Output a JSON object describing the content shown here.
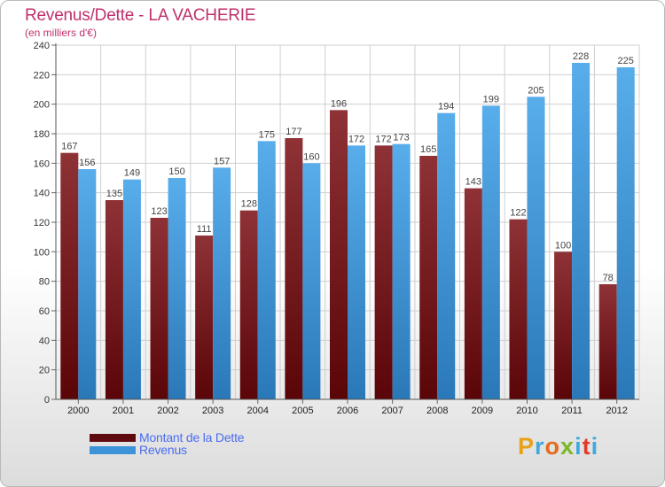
{
  "header": {
    "title": "Revenus/Dette - LA VACHERIE",
    "subtitle": "(en milliers d'€)"
  },
  "chart_data": {
    "type": "bar",
    "categories": [
      "2000",
      "2001",
      "2002",
      "2003",
      "2004",
      "2005",
      "2006",
      "2007",
      "2008",
      "2009",
      "2010",
      "2011",
      "2012"
    ],
    "series": [
      {
        "name": "Montant de la Dette",
        "values": [
          167,
          135,
          123,
          111,
          128,
          177,
          196,
          172,
          165,
          143,
          122,
          100,
          78
        ],
        "color": "#8b2a2f"
      },
      {
        "name": "Revenus",
        "values": [
          156,
          149,
          150,
          157,
          175,
          160,
          172,
          173,
          194,
          199,
          205,
          228,
          225
        ],
        "color": "#4aa3e6"
      }
    ],
    "ylim": [
      0,
      240
    ],
    "yticks": [
      0,
      20,
      40,
      60,
      80,
      100,
      120,
      140,
      160,
      180,
      200,
      220,
      240
    ],
    "grid": true,
    "legend_position": "bottom-left",
    "xlabel": "",
    "ylabel": ""
  },
  "brand": {
    "text": "Proxiti"
  }
}
